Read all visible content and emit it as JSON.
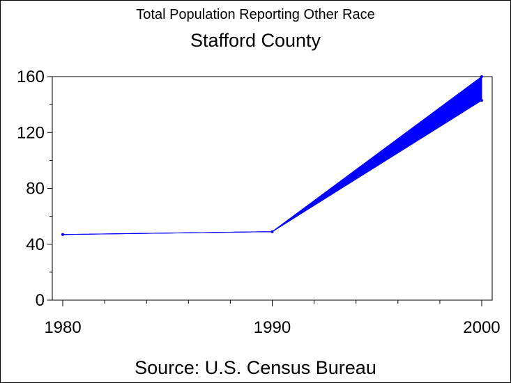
{
  "chart_data": {
    "type": "line",
    "title": "Stafford County",
    "subtitle": "Total Population Reporting Other Race",
    "source": "Source: U.S. Census Bureau",
    "x": [
      1980,
      1990,
      2000
    ],
    "series": [
      {
        "values": [
          47,
          49,
          160
        ]
      },
      {
        "values": [
          47,
          49,
          143
        ]
      }
    ],
    "band_between_series": true,
    "xlim": [
      1979.5,
      2000.5
    ],
    "ylim": [
      0,
      160
    ],
    "x_major_ticks": [
      1980,
      1990,
      2000
    ],
    "x_minor_step": 2,
    "y_major_ticks": [
      0,
      40,
      80,
      120,
      160
    ],
    "y_minor_step": 20,
    "color": "#0000ff",
    "grid": false,
    "legend": "none"
  }
}
